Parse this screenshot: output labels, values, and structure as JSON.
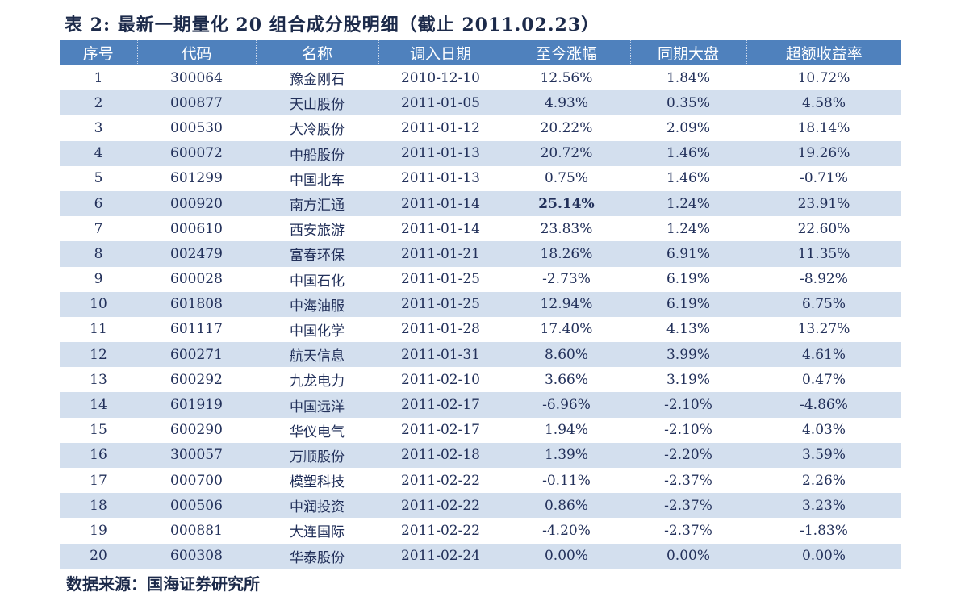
{
  "title": "表 2: 最新一期量化 20 组合成分股明细（截止 2011.02.23）",
  "colors": {
    "header_bg": "#4f81bd",
    "stripe": "#d3dfee",
    "positive": "#d0121b",
    "highlight": "#7030a0"
  },
  "table": {
    "headers": [
      "序号",
      "代码",
      "名称",
      "调入日期",
      "至今涨幅",
      "同期大盘",
      "超额收益率"
    ],
    "rows": [
      [
        "1",
        "300064",
        "豫金刚石",
        "2010-12-10",
        "12.56%",
        "1.84%",
        "10.72%"
      ],
      [
        "2",
        "000877",
        "天山股份",
        "2011-01-05",
        "4.93%",
        "0.35%",
        "4.58%"
      ],
      [
        "3",
        "000530",
        "大冷股份",
        "2011-01-12",
        "20.22%",
        "2.09%",
        "18.14%"
      ],
      [
        "4",
        "600072",
        "中船股份",
        "2011-01-13",
        "20.72%",
        "1.46%",
        "19.26%"
      ],
      [
        "5",
        "601299",
        "中国北车",
        "2011-01-13",
        "0.75%",
        "1.46%",
        "-0.71%"
      ],
      [
        "6",
        "000920",
        "南方汇通",
        "2011-01-14",
        "25.14%",
        "1.24%",
        "23.91%"
      ],
      [
        "7",
        "000610",
        "西安旅游",
        "2011-01-14",
        "23.83%",
        "1.24%",
        "22.60%"
      ],
      [
        "8",
        "002479",
        "富春环保",
        "2011-01-21",
        "18.26%",
        "6.91%",
        "11.35%"
      ],
      [
        "9",
        "600028",
        "中国石化",
        "2011-01-25",
        "-2.73%",
        "6.19%",
        "-8.92%"
      ],
      [
        "10",
        "601808",
        "中海油服",
        "2011-01-25",
        "12.94%",
        "6.19%",
        "6.75%"
      ],
      [
        "11",
        "601117",
        "中国化学",
        "2011-01-28",
        "17.40%",
        "4.13%",
        "13.27%"
      ],
      [
        "12",
        "600271",
        "航天信息",
        "2011-01-31",
        "8.60%",
        "3.99%",
        "4.61%"
      ],
      [
        "13",
        "600292",
        "九龙电力",
        "2011-02-10",
        "3.66%",
        "3.19%",
        "0.47%"
      ],
      [
        "14",
        "601919",
        "中国远洋",
        "2011-02-17",
        "-6.96%",
        "-2.10%",
        "-4.86%"
      ],
      [
        "15",
        "600290",
        "华仪电气",
        "2011-02-17",
        "1.94%",
        "-2.10%",
        "4.03%"
      ],
      [
        "16",
        "300057",
        "万顺股份",
        "2011-02-18",
        "1.39%",
        "-2.20%",
        "3.59%"
      ],
      [
        "17",
        "000700",
        "模塑科技",
        "2011-02-22",
        "-0.11%",
        "-2.37%",
        "2.26%"
      ],
      [
        "18",
        "000506",
        "中润投资",
        "2011-02-22",
        "0.86%",
        "-2.37%",
        "3.23%"
      ],
      [
        "19",
        "000881",
        "大连国际",
        "2011-02-22",
        "-4.20%",
        "-2.37%",
        "-1.83%"
      ],
      [
        "20",
        "600308",
        "华泰股份",
        "2011-02-24",
        "0.00%",
        "0.00%",
        "0.00%"
      ]
    ],
    "highlight_cell": {
      "row": 5,
      "col": 4
    }
  },
  "source": "数据来源：国海证券研究所"
}
